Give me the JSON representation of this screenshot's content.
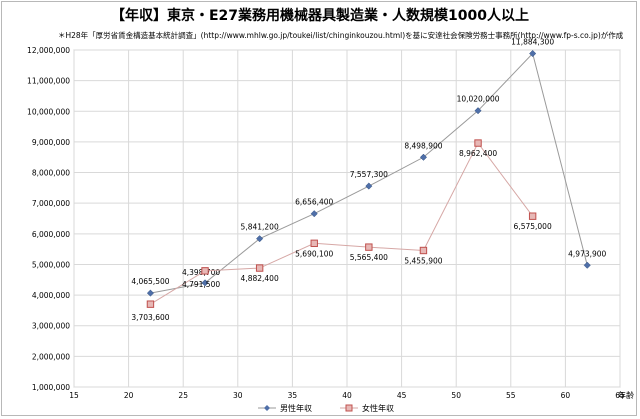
{
  "chart_data": {
    "type": "line",
    "title": "【年収】東京・E27業務用機械器具製造業・人数規模1000人以上",
    "subtitle": "＊H28年「厚労省賃金構造基本統計調査」(http://www.mhlw.go.jp/toukei/list/chinginkouzou.html)を基に安達社会保険労務士事務所(http://www.fp-s.co.jp)が作成",
    "xlabel": "年齢",
    "ylabel": "",
    "xlim": [
      15,
      65
    ],
    "ylim": [
      1000000,
      12000000
    ],
    "xticks": [
      15,
      20,
      25,
      30,
      35,
      40,
      45,
      50,
      55,
      60,
      65
    ],
    "yticks": [
      1000000,
      2000000,
      3000000,
      4000000,
      5000000,
      6000000,
      7000000,
      8000000,
      9000000,
      10000000,
      11000000,
      12000000
    ],
    "ytick_labels": [
      "1,000,000",
      "2,000,000",
      "3,000,000",
      "4,000,000",
      "5,000,000",
      "6,000,000",
      "7,000,000",
      "8,000,000",
      "9,000,000",
      "10,000,000",
      "11,000,000",
      "12,000,000"
    ],
    "xtick_labels": [
      "15",
      "20",
      "25",
      "30",
      "35",
      "40",
      "45",
      "50",
      "55",
      "60",
      "65"
    ],
    "grid": true,
    "legend": "bottom",
    "series": [
      {
        "name": "男性年収",
        "color": "#4f6fa8",
        "marker": "diamond",
        "x": [
          22,
          27,
          32,
          37,
          42,
          47,
          52,
          57,
          62
        ],
        "y": [
          4065500,
          4398700,
          5841200,
          6656400,
          7557300,
          8498900,
          10020000,
          11884300,
          4973900
        ],
        "labels": [
          "4,065,500",
          "4,398,700",
          "5,841,200",
          "6,656,400",
          "7,557,300",
          "8,498,900",
          "10,020,000",
          "11,884,300",
          "4,973,900"
        ]
      },
      {
        "name": "女性年収",
        "color": "#c0504d",
        "marker": "square",
        "x": [
          22,
          27,
          32,
          37,
          42,
          47,
          52,
          57
        ],
        "y": [
          3703600,
          4791500,
          4882400,
          5690100,
          5565400,
          5455900,
          8962400,
          6575000
        ],
        "labels": [
          "3,703,600",
          "4,791,500",
          "4,882,400",
          "5,690,100",
          "5,565,400",
          "5,455,900",
          "8,962,400",
          "6,575,000"
        ]
      }
    ]
  }
}
